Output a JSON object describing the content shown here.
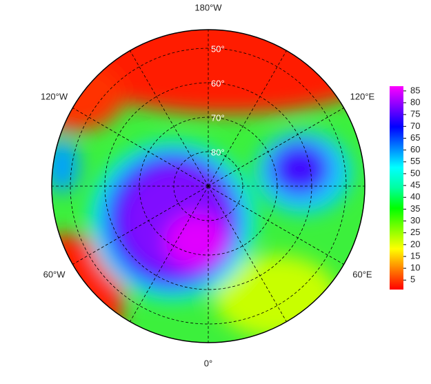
{
  "map": {
    "longitude_labels": [
      {
        "value": -180,
        "label": "180°W"
      },
      {
        "value": -120,
        "label": "120°W"
      },
      {
        "value": 120,
        "label": "120°E"
      },
      {
        "value": -60,
        "label": "60°W"
      },
      {
        "value": 60,
        "label": "60°E"
      },
      {
        "value": 0,
        "label": "0°"
      }
    ],
    "latitude_labels": [
      {
        "value": 50,
        "label": "50°"
      },
      {
        "value": 60,
        "label": "60°"
      },
      {
        "value": 70,
        "label": "70°"
      },
      {
        "value": 80,
        "label": "80°"
      }
    ],
    "colorbar": {
      "range": [
        1,
        87
      ],
      "ticks": [
        5,
        10,
        15,
        20,
        25,
        30,
        35,
        40,
        45,
        50,
        55,
        60,
        65,
        70,
        75,
        80,
        85
      ],
      "colors": [
        "#ff0000",
        "#ff8000",
        "#ffff00",
        "#80ff00",
        "#00ff00",
        "#00ffa0",
        "#00ffff",
        "#0080ff",
        "#0000ff",
        "#8000ff",
        "#ff00ff"
      ]
    }
  }
}
